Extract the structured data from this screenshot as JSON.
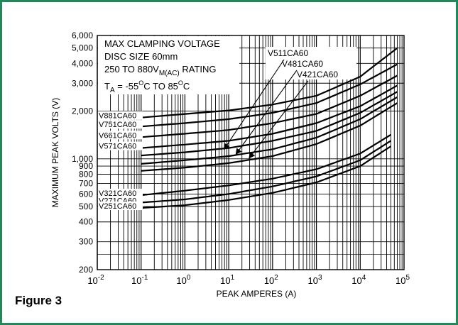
{
  "figure_label": "Figure 3",
  "chart_data": {
    "type": "line",
    "title_lines": [
      "MAX CLAMPING VOLTAGE",
      "DISC SIZE 60mm"
    ],
    "rating": {
      "prefix": "250 TO 880V",
      "subscript": "M(AC)",
      "suffix": " RATING"
    },
    "temperature": {
      "symbol": "T",
      "symbol_subscript": "A",
      "text1": " = -55",
      "sup1": "O",
      "text2": "C TO 85",
      "sup2": "O",
      "text3": "C"
    },
    "xlabel": "PEAK AMPERES (A)",
    "ylabel": "MAXIMUM PEAK VOLTS (V)",
    "x_scale": "log",
    "y_scale": "log",
    "xlim": [
      0.01,
      100000
    ],
    "ylim": [
      200,
      6000
    ],
    "grid": true,
    "x_ticks": [
      {
        "value": 0.01,
        "base": "10",
        "exp": "-2"
      },
      {
        "value": 0.1,
        "base": "10",
        "exp": "-1"
      },
      {
        "value": 1,
        "base": "10",
        "exp": "0"
      },
      {
        "value": 10,
        "base": "10",
        "exp": "1"
      },
      {
        "value": 100,
        "base": "10",
        "exp": "2"
      },
      {
        "value": 1000,
        "base": "10",
        "exp": "3"
      },
      {
        "value": 10000,
        "base": "10",
        "exp": "4"
      },
      {
        "value": 100000,
        "base": "10",
        "exp": "5"
      }
    ],
    "y_ticks": [
      {
        "value": 200,
        "label": "200"
      },
      {
        "value": 300,
        "label": "300"
      },
      {
        "value": 400,
        "label": "400"
      },
      {
        "value": 500,
        "label": "500"
      },
      {
        "value": 600,
        "label": "600"
      },
      {
        "value": 700,
        "label": "700"
      },
      {
        "value": 800,
        "label": "800"
      },
      {
        "value": 900,
        "label": "900"
      },
      {
        "value": 1000,
        "label": "1,000"
      },
      {
        "value": 2000,
        "label": "2,000"
      },
      {
        "value": 3000,
        "label": "3,000"
      },
      {
        "value": 4000,
        "label": "4,000"
      },
      {
        "value": 5000,
        "label": "5,000"
      },
      {
        "value": 6000,
        "label": "6,000"
      }
    ],
    "series": [
      {
        "name": "V881CA60",
        "label_pos": "left",
        "x": [
          0.1,
          1,
          10,
          100,
          1000,
          10000,
          70000
        ],
        "y": [
          1820,
          1920,
          2020,
          2200,
          2500,
          3300,
          5000
        ]
      },
      {
        "name": "V751CA60",
        "label_pos": "left",
        "x": [
          0.1,
          1,
          10,
          100,
          1000,
          10000,
          70000
        ],
        "y": [
          1600,
          1680,
          1780,
          1950,
          2250,
          2950,
          3950
        ]
      },
      {
        "name": "V661CA60",
        "label_pos": "left",
        "x": [
          0.1,
          1,
          10,
          100,
          1000,
          10000,
          70000
        ],
        "y": [
          1370,
          1440,
          1520,
          1680,
          1920,
          2500,
          3350
        ]
      },
      {
        "name": "V571CA60",
        "label_pos": "left",
        "x": [
          0.1,
          1,
          10,
          100,
          1000,
          10000,
          70000
        ],
        "y": [
          1170,
          1230,
          1300,
          1440,
          1680,
          2150,
          2900
        ]
      },
      {
        "name": "V511CA60",
        "label_pos": "arrow",
        "x": [
          0.1,
          1,
          10,
          100,
          1000,
          10000,
          70000
        ],
        "y": [
          1050,
          1100,
          1170,
          1300,
          1500,
          1950,
          2650
        ]
      },
      {
        "name": "V481CA60",
        "label_pos": "arrow",
        "x": [
          0.1,
          1,
          10,
          100,
          1000,
          10000,
          70000
        ],
        "y": [
          930,
          980,
          1040,
          1150,
          1360,
          1780,
          2450
        ]
      },
      {
        "name": "V421CA60",
        "label_pos": "arrow",
        "x": [
          0.1,
          1,
          10,
          100,
          1000,
          10000,
          70000
        ],
        "y": [
          840,
          880,
          940,
          1040,
          1240,
          1620,
          2250
        ]
      },
      {
        "name": "V321CA60",
        "label_pos": "left",
        "x": [
          0.1,
          1,
          10,
          100,
          1000,
          10000,
          50000
        ],
        "y": [
          590,
          630,
          680,
          750,
          860,
          1080,
          1420
        ]
      },
      {
        "name": "V271CA60",
        "label_pos": "left",
        "x": [
          0.1,
          1,
          10,
          100,
          1000,
          10000,
          50000
        ],
        "y": [
          530,
          555,
          600,
          670,
          775,
          980,
          1300
        ]
      },
      {
        "name": "V251CA60",
        "label_pos": "left",
        "x": [
          0.1,
          1,
          10,
          100,
          1000,
          10000,
          50000
        ],
        "y": [
          490,
          510,
          550,
          610,
          710,
          900,
          1200
        ]
      }
    ]
  }
}
